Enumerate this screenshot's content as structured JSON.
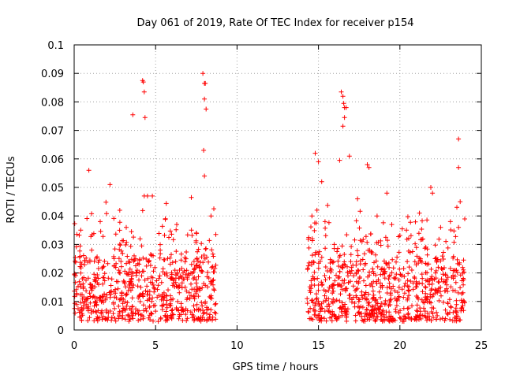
{
  "chart_data": {
    "type": "scatter",
    "title": "Day 061 of 2019, Rate Of TEC Index for receiver p154",
    "xlabel": "GPS time / hours",
    "ylabel": "ROTI / TECUs",
    "xlim": [
      0,
      25
    ],
    "ylim": [
      0,
      0.1
    ],
    "xticks": [
      0,
      5,
      10,
      15,
      20,
      25
    ],
    "xtick_labels": [
      "0",
      "5",
      "10",
      "15",
      "20",
      "25"
    ],
    "yticks": [
      0,
      0.01,
      0.02,
      0.03,
      0.04,
      0.05,
      0.06,
      0.07,
      0.08,
      0.09,
      0.1
    ],
    "ytick_labels": [
      "0",
      "0.01",
      "0.02",
      "0.03",
      "0.04",
      "0.05",
      "0.06",
      "0.07",
      "0.08",
      "0.09",
      "0.1"
    ],
    "grid": true,
    "marker": "+",
    "color": "#ff0000",
    "series": [
      {
        "name": "ROTI",
        "segments": [
          {
            "x_range": [
              0.0,
              8.7
            ],
            "baseline": 0.012
          },
          {
            "x_range": [
              14.3,
              24.0
            ],
            "baseline": 0.012
          }
        ],
        "x": [
          0.9,
          2.2,
          3.6,
          4.2,
          4.25,
          4.3,
          4.35,
          4.3,
          4.5,
          4.8,
          7.9,
          8.0,
          8.05,
          8.0,
          8.1,
          7.95,
          8.0,
          14.8,
          15.0,
          16.4,
          16.5,
          16.55,
          16.6,
          16.7,
          16.5,
          16.6,
          16.9,
          16.3,
          18.0,
          18.1,
          19.2,
          21.9,
          22.0,
          23.6,
          23.6,
          23.7,
          23.5,
          15.2,
          0.4,
          1.6,
          2.8,
          3.2,
          5.6,
          6.3,
          7.2,
          7.5,
          8.4,
          14.6,
          15.4,
          17.4,
          18.6,
          19.5,
          20.4,
          21.2,
          22.5,
          23.1
        ],
        "y": [
          0.056,
          0.051,
          0.0755,
          0.0875,
          0.087,
          0.0835,
          0.0745,
          0.047,
          0.047,
          0.047,
          0.09,
          0.0865,
          0.0865,
          0.081,
          0.0775,
          0.063,
          0.054,
          0.062,
          0.059,
          0.0835,
          0.082,
          0.0795,
          0.078,
          0.078,
          0.0715,
          0.0745,
          0.061,
          0.0595,
          0.058,
          0.057,
          0.048,
          0.05,
          0.048,
          0.067,
          0.057,
          0.045,
          0.043,
          0.052,
          0.035,
          0.038,
          0.042,
          0.036,
          0.039,
          0.037,
          0.035,
          0.034,
          0.04,
          0.04,
          0.038,
          0.046,
          0.04,
          0.037,
          0.035,
          0.041,
          0.036,
          0.038
        ]
      }
    ]
  }
}
